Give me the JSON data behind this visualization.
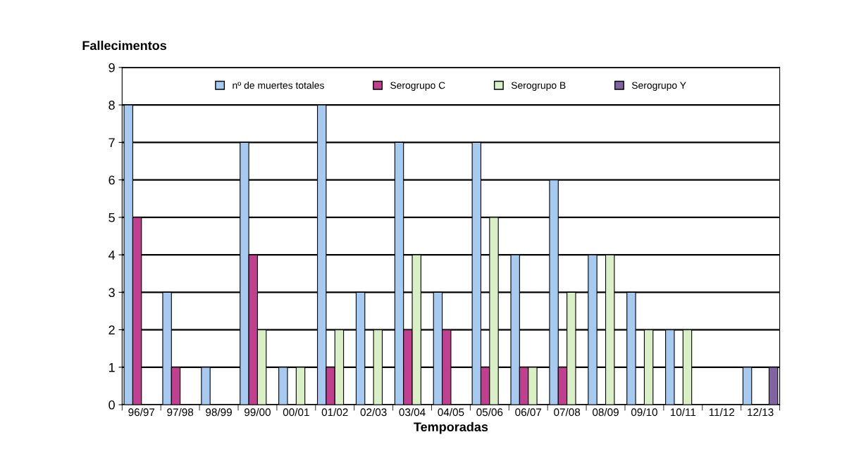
{
  "chart_data": {
    "type": "bar",
    "ylabel": "Fallecimentos",
    "xlabel": "Temporadas",
    "categories": [
      "96/97",
      "97/98",
      "98/99",
      "99/00",
      "00/01",
      "01/02",
      "02/03",
      "03/04",
      "04/05",
      "05/06",
      "06/07",
      "07/08",
      "08/09",
      "09/10",
      "10/11",
      "11/12",
      "12/13"
    ],
    "series": [
      {
        "name": "nº de muertes totales",
        "color": "#a6caf0",
        "values": [
          8,
          3,
          1,
          7,
          1,
          8,
          3,
          7,
          3,
          7,
          4,
          6,
          4,
          3,
          2,
          0,
          1
        ]
      },
      {
        "name": "Serogrupo C",
        "color": "#c0408f",
        "values": [
          5,
          1,
          0,
          4,
          0,
          1,
          0,
          2,
          2,
          1,
          1,
          1,
          0,
          0,
          0,
          0,
          0
        ]
      },
      {
        "name": "Serogrupo B",
        "color": "#d9efc6",
        "values": [
          0,
          0,
          0,
          2,
          1,
          2,
          2,
          4,
          0,
          5,
          1,
          3,
          4,
          2,
          2,
          0,
          0
        ]
      },
      {
        "name": "Serogrupo Y",
        "color": "#8064a2",
        "values": [
          0,
          0,
          0,
          0,
          0,
          0,
          0,
          0,
          0,
          0,
          0,
          0,
          0,
          0,
          0,
          0,
          1
        ]
      }
    ],
    "ylim": [
      0,
      9
    ],
    "yticks": [
      0,
      1,
      2,
      3,
      4,
      5,
      6,
      7,
      8,
      9
    ],
    "grid": "y",
    "legend": "top"
  }
}
